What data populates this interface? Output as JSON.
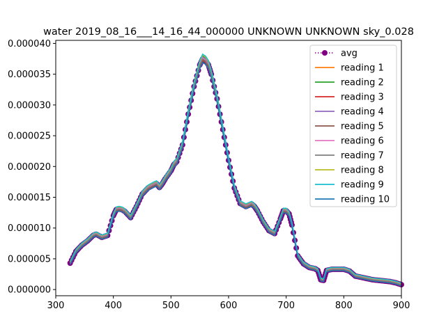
{
  "chart_data": {
    "type": "line",
    "title": "water 2019_08_16___14_16_44_000000 UNKNOWN UNKNOWN sky_0.028",
    "xlabel": "",
    "ylabel": "",
    "xlim": [
      300,
      900
    ],
    "ylim": [
      -1e-06,
      4.05e-05
    ],
    "xticks": [
      300,
      400,
      500,
      600,
      700,
      800,
      900
    ],
    "xtick_labels": [
      "300",
      "400",
      "500",
      "600",
      "700",
      "800",
      "900"
    ],
    "yticks": [
      0.0,
      5e-06,
      1e-05,
      1.5e-05,
      2e-05,
      2.5e-05,
      3e-05,
      3.5e-05,
      4e-05
    ],
    "ytick_labels": [
      "0.000000",
      "0.000005",
      "0.000010",
      "0.000015",
      "0.000020",
      "0.000025",
      "0.000030",
      "0.000035",
      "0.000040"
    ],
    "grid": false,
    "legend_position": "upper-right",
    "avg_series": {
      "name": "avg",
      "color": "#800080",
      "style": "dotted line with circle markers"
    },
    "x": [
      325,
      335,
      345,
      355,
      365,
      370,
      380,
      390,
      400,
      405,
      410,
      415,
      420,
      430,
      440,
      450,
      460,
      470,
      475,
      480,
      485,
      490,
      500,
      505,
      510,
      520,
      530,
      540,
      550,
      555,
      560,
      565,
      570,
      580,
      590,
      600,
      610,
      620,
      630,
      640,
      645,
      650,
      660,
      670,
      680,
      690,
      695,
      700,
      705,
      710,
      720,
      730,
      740,
      750,
      755,
      760,
      765,
      770,
      780,
      790,
      800,
      810,
      820,
      830,
      840,
      850,
      860,
      870,
      880,
      890,
      900
    ],
    "series": [
      {
        "name": "avg",
        "color": "#800080",
        "values": [
          4.3e-06,
          6.2e-06,
          7.2e-06,
          7.9e-06,
          8.8e-06,
          9e-06,
          8.5e-06,
          8.8e-06,
          1.2e-05,
          1.3e-05,
          1.31e-05,
          1.3e-05,
          1.27e-05,
          1.17e-05,
          1.35e-05,
          1.55e-05,
          1.65e-05,
          1.7e-05,
          1.72e-05,
          1.66e-05,
          1.72e-05,
          1.8e-05,
          1.93e-05,
          2.03e-05,
          2.08e-05,
          2.35e-05,
          2.85e-05,
          3.3e-05,
          3.65e-05,
          3.75e-05,
          3.72e-05,
          3.65e-05,
          3.5e-05,
          3.1e-05,
          2.6e-05,
          2.1e-05,
          1.65e-05,
          1.4e-05,
          1.35e-05,
          1.39e-05,
          1.35e-05,
          1.28e-05,
          1.1e-05,
          9.6e-06,
          9.1e-06,
          1.15e-05,
          1.28e-05,
          1.28e-05,
          1.23e-05,
          1.05e-05,
          5.5e-06,
          4.2e-06,
          3.6e-06,
          3.4e-06,
          3.1e-06,
          1.6e-06,
          1.5e-06,
          3.1e-06,
          3.3e-06,
          3.3e-06,
          3.3e-06,
          3e-06,
          2.2e-06,
          2e-06,
          1.8e-06,
          1.6e-06,
          1.5e-06,
          1.4e-06,
          1.3e-06,
          1.1e-06,
          8e-07
        ]
      },
      {
        "name": "reading 1",
        "color": "#ff7f0e",
        "offset": 1e-07
      },
      {
        "name": "reading 2",
        "color": "#2ca02c",
        "offset": 3e-07
      },
      {
        "name": "reading 3",
        "color": "#d62728",
        "offset": -1e-07
      },
      {
        "name": "reading 4",
        "color": "#9467bd",
        "offset": 2e-07
      },
      {
        "name": "reading 5",
        "color": "#8c564b",
        "offset": -2e-07
      },
      {
        "name": "reading 6",
        "color": "#e377c2",
        "offset": 1e-07
      },
      {
        "name": "reading 7",
        "color": "#7f7f7f",
        "offset": 0.0
      },
      {
        "name": "reading 8",
        "color": "#bcbd22",
        "offset": 4e-07
      },
      {
        "name": "reading 9",
        "color": "#17becf",
        "offset": 5e-07
      },
      {
        "name": "reading 10",
        "color": "#1f77b4",
        "offset": -4e-07
      }
    ]
  }
}
